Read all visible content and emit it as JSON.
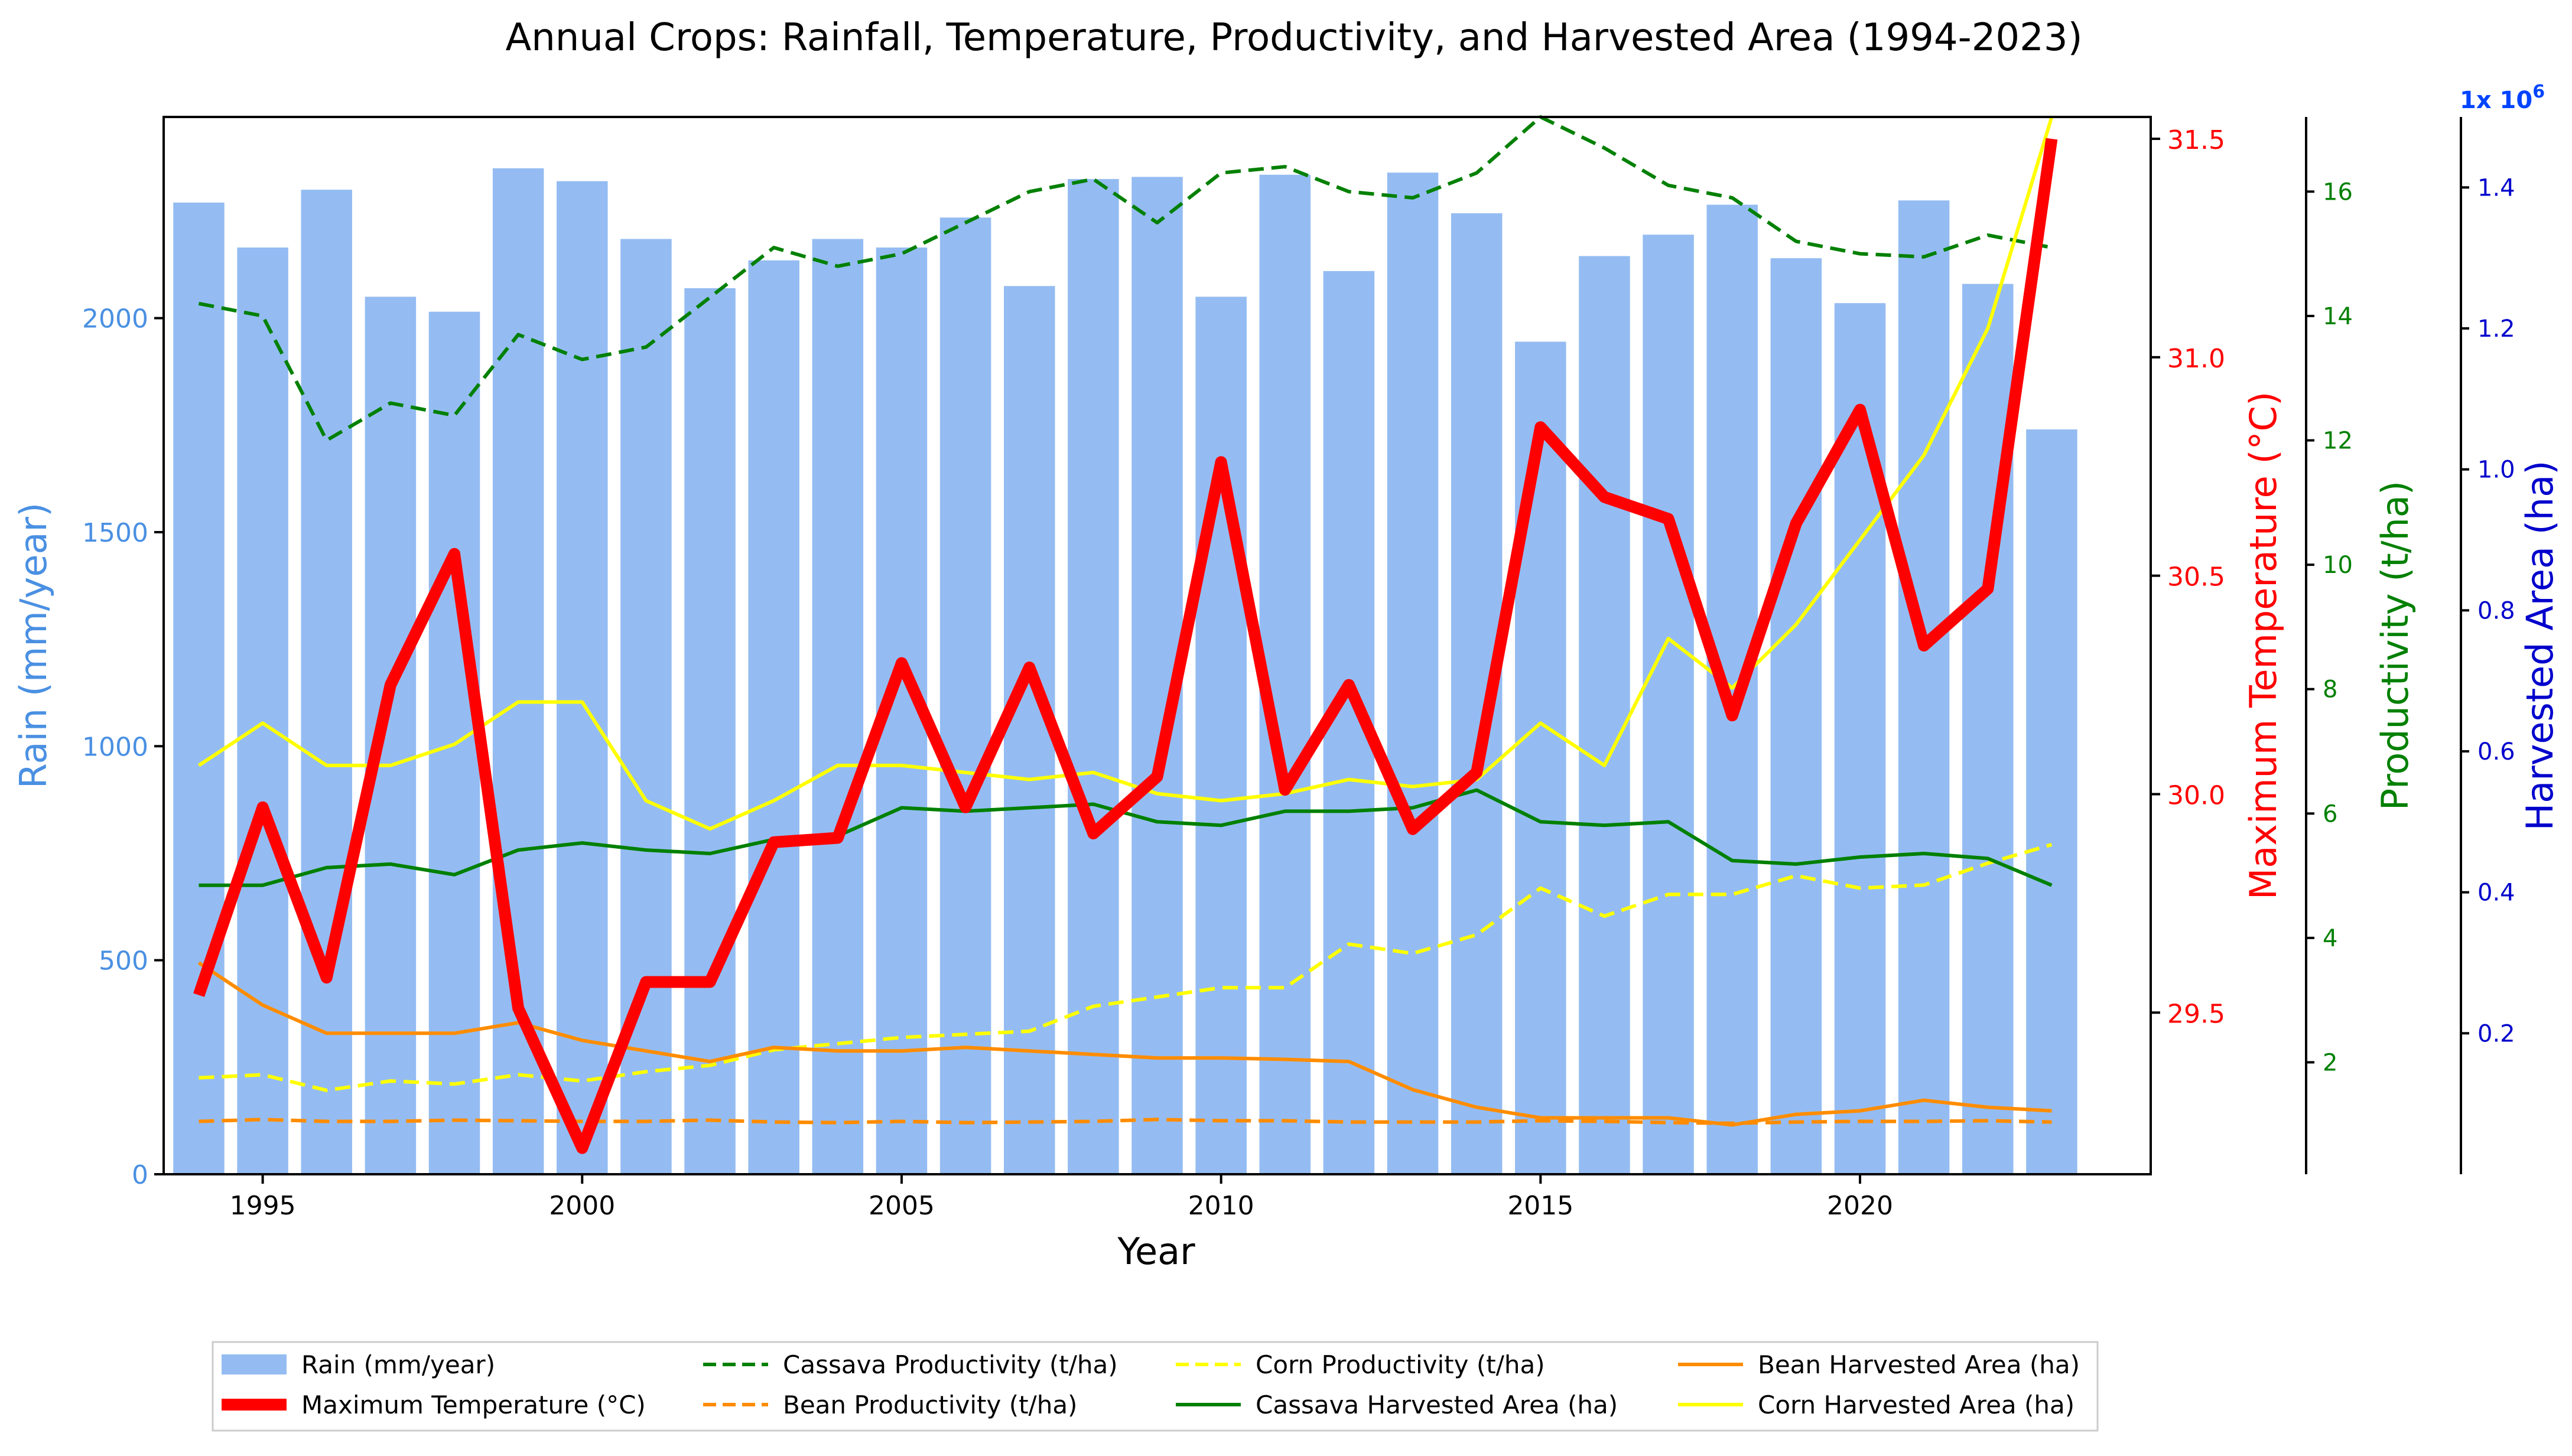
{
  "chart_data": {
    "type": "bar+line",
    "title": "Annual Crops: Rainfall, Temperature, Productivity, and Harvested Area (1994-2023)",
    "xlabel": "Year",
    "x": [
      1994,
      1995,
      1996,
      1997,
      1998,
      1999,
      2000,
      2001,
      2002,
      2003,
      2004,
      2005,
      2006,
      2007,
      2008,
      2009,
      2010,
      2011,
      2012,
      2013,
      2014,
      2015,
      2016,
      2017,
      2018,
      2019,
      2020,
      2021,
      2022,
      2023
    ],
    "x_ticks": [
      "1995",
      "2000",
      "2005",
      "2010",
      "2015",
      "2020"
    ],
    "axes": {
      "rain": {
        "label": "Rain (mm/year)",
        "ylim": [
          0,
          2470
        ],
        "ticks": [
          "0",
          "500",
          "1000",
          "1500",
          "2000"
        ],
        "color": "#4a90e2"
      },
      "temperature": {
        "label": "Maximum Temperature (°C)",
        "ylim": [
          29.13,
          31.55
        ],
        "ticks": [
          "29.5",
          "30.0",
          "30.5",
          "31.0",
          "31.5"
        ],
        "color": "#ff0000"
      },
      "productivity": {
        "label": "Productivity (t/ha)",
        "ylim": [
          0.2,
          17.2
        ],
        "ticks": [
          "2",
          "4",
          "6",
          "8",
          "10",
          "12",
          "14",
          "16"
        ],
        "color": "#008000"
      },
      "harvested_area": {
        "label": "Harvested Area (ha)",
        "ylim": [
          0,
          1.5
        ],
        "ticks": [
          "0.2",
          "0.4",
          "0.6",
          "0.8",
          "1.0",
          "1.2",
          "1.4"
        ],
        "multiplier": "1x 10",
        "multiplier_exp": "6",
        "color": "#0000cc",
        "multiplier_color": "#0044ff"
      }
    },
    "series": [
      {
        "name": "Rain (mm/year)",
        "kind": "bar",
        "axis": "rain",
        "color": "#94bcf2",
        "values": [
          2270,
          2165,
          2300,
          2050,
          2015,
          2350,
          2320,
          2185,
          2070,
          2135,
          2185,
          2165,
          2235,
          2075,
          2325,
          2330,
          2050,
          2335,
          2110,
          2340,
          2245,
          1945,
          2145,
          2195,
          2265,
          2140,
          2035,
          2275,
          2080,
          1740
        ]
      },
      {
        "name": "Maximum Temperature (°C)",
        "kind": "line",
        "axis": "temperature",
        "color": "#ff0000",
        "width": 20,
        "dash": "",
        "values": [
          29.54,
          29.97,
          29.58,
          30.25,
          30.55,
          29.51,
          29.19,
          29.57,
          29.57,
          29.89,
          29.9,
          30.3,
          29.97,
          30.29,
          29.91,
          30.04,
          30.76,
          30.01,
          30.25,
          29.92,
          30.05,
          30.84,
          30.68,
          30.63,
          30.18,
          30.62,
          30.88,
          30.34,
          30.47,
          31.5
        ]
      },
      {
        "name": "Cassava Productivity (t/ha)",
        "kind": "line",
        "axis": "productivity",
        "color": "#008000",
        "width": 6,
        "dash": "26,13",
        "values": [
          14.2,
          14.0,
          12.0,
          12.6,
          12.4,
          13.7,
          13.3,
          13.5,
          14.3,
          15.1,
          14.8,
          15.0,
          15.5,
          16.0,
          16.2,
          15.5,
          16.3,
          16.4,
          16.0,
          15.9,
          16.3,
          17.2,
          16.7,
          16.1,
          15.9,
          15.2,
          15.0,
          14.95,
          15.3,
          15.1
        ]
      },
      {
        "name": "Bean Productivity (t/ha)",
        "kind": "line",
        "axis": "productivity",
        "color": "#ff8c00",
        "width": 6,
        "dash": "26,13",
        "values": [
          1.05,
          1.08,
          1.05,
          1.05,
          1.07,
          1.06,
          1.05,
          1.05,
          1.07,
          1.04,
          1.03,
          1.05,
          1.03,
          1.04,
          1.05,
          1.08,
          1.06,
          1.06,
          1.04,
          1.04,
          1.04,
          1.06,
          1.05,
          1.03,
          1.02,
          1.04,
          1.05,
          1.05,
          1.06,
          1.04
        ]
      },
      {
        "name": "Corn Productivity (t/ha)",
        "kind": "line",
        "axis": "productivity",
        "color": "#ffff00",
        "width": 6,
        "dash": "26,13",
        "values": [
          1.75,
          1.8,
          1.55,
          1.7,
          1.65,
          1.8,
          1.7,
          1.85,
          1.95,
          2.2,
          2.3,
          2.4,
          2.45,
          2.5,
          2.9,
          3.05,
          3.2,
          3.2,
          3.9,
          3.75,
          4.05,
          4.8,
          4.35,
          4.7,
          4.7,
          5.0,
          4.8,
          4.85,
          5.2,
          5.5
        ]
      },
      {
        "name": "Cassava Harvested Area (ha)",
        "kind": "line",
        "axis": "harvested_area",
        "color": "#008000",
        "width": 6,
        "dash": "",
        "values": [
          0.41,
          0.41,
          0.435,
          0.44,
          0.425,
          0.46,
          0.47,
          0.46,
          0.455,
          0.475,
          0.48,
          0.52,
          0.515,
          0.52,
          0.525,
          0.5,
          0.495,
          0.515,
          0.515,
          0.52,
          0.545,
          0.5,
          0.495,
          0.5,
          0.445,
          0.44,
          0.45,
          0.455,
          0.448,
          0.41
        ]
      },
      {
        "name": "Bean Harvested Area (ha)",
        "kind": "line",
        "axis": "harvested_area",
        "color": "#ff8c00",
        "width": 6,
        "dash": "",
        "values": [
          0.3,
          0.24,
          0.2,
          0.2,
          0.2,
          0.215,
          0.19,
          0.175,
          0.16,
          0.18,
          0.175,
          0.175,
          0.18,
          0.175,
          0.17,
          0.165,
          0.165,
          0.163,
          0.16,
          0.12,
          0.095,
          0.08,
          0.08,
          0.08,
          0.07,
          0.085,
          0.09,
          0.105,
          0.095,
          0.09
        ]
      },
      {
        "name": "Corn Harvested Area (ha)",
        "kind": "line",
        "axis": "harvested_area",
        "color": "#ffff00",
        "width": 6,
        "dash": "",
        "values": [
          0.58,
          0.64,
          0.58,
          0.58,
          0.61,
          0.67,
          0.67,
          0.53,
          0.49,
          0.53,
          0.58,
          0.58,
          0.57,
          0.56,
          0.57,
          0.54,
          0.53,
          0.54,
          0.56,
          0.55,
          0.56,
          0.64,
          0.58,
          0.76,
          0.69,
          0.78,
          0.9,
          1.02,
          1.2,
          1.5
        ]
      }
    ],
    "legend_position": "bottom-center",
    "legend": [
      [
        "Rain (mm/year)",
        "Cassava Productivity (t/ha)",
        "Corn Productivity (t/ha)",
        "Bean Harvested Area (ha)"
      ],
      [
        "Maximum Temperature (°C)",
        "Bean Productivity (t/ha)",
        "Cassava Harvested Area (ha)",
        "Corn Harvested Area (ha)"
      ]
    ]
  }
}
